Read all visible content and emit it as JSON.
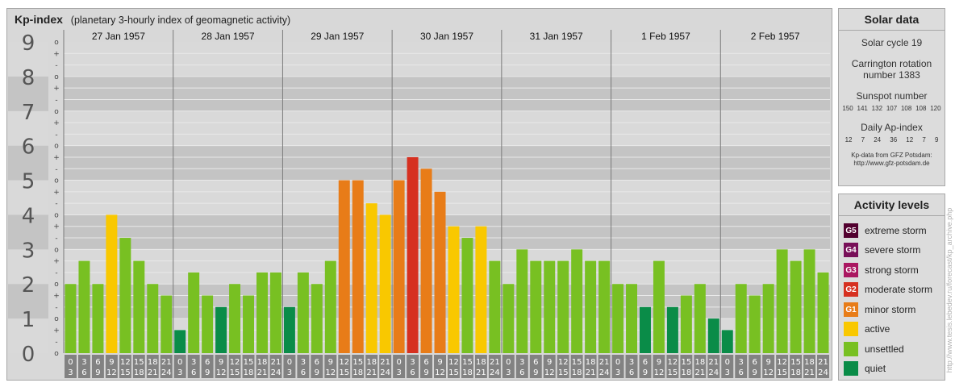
{
  "header": {
    "title": "Kp-index",
    "subtitle": "(planetary 3-hourly index of geomagnetic activity)"
  },
  "chart_data": {
    "type": "bar",
    "title": "Kp-index",
    "subtitle": "(planetary 3-hourly index of geomagnetic activity)",
    "ylim": [
      0,
      9
    ],
    "y_ticks": [
      "0",
      "1",
      "2",
      "3",
      "4",
      "5",
      "6",
      "7",
      "8",
      "9"
    ],
    "sub_ticks": [
      "o",
      "-",
      "+"
    ],
    "days": [
      "27 Jan 1957",
      "28 Jan 1957",
      "29 Jan 1957",
      "30 Jan 1957",
      "31 Jan 1957",
      "1 Feb 1957",
      "2 Feb 1957"
    ],
    "interval_start": [
      "0",
      "3",
      "6",
      "9",
      "12",
      "15",
      "18",
      "21"
    ],
    "interval_end": [
      "3",
      "6",
      "9",
      "12",
      "15",
      "18",
      "21",
      "24"
    ],
    "values": [
      2.0,
      2.667,
      2.0,
      4.0,
      3.333,
      2.667,
      2.0,
      1.667,
      0.667,
      2.333,
      1.667,
      1.333,
      2.0,
      1.667,
      2.333,
      2.333,
      1.333,
      2.333,
      2.0,
      2.667,
      5.0,
      5.0,
      4.333,
      4.0,
      5.0,
      5.667,
      5.333,
      4.667,
      3.667,
      3.333,
      3.667,
      2.667,
      2.0,
      3.0,
      2.667,
      2.667,
      2.667,
      3.0,
      2.667,
      2.667,
      2.0,
      2.0,
      1.333,
      2.667,
      1.333,
      1.667,
      2.0,
      1.0,
      0.667,
      2.0,
      1.667,
      2.0,
      3.0,
      2.667,
      3.0,
      2.333
    ],
    "grid": true
  },
  "solar": {
    "title": "Solar data",
    "cycle": "Solar cycle 19",
    "carrington_line1": "Carrington rotation",
    "carrington_line2": "number 1383",
    "sunspot_label": "Sunspot number",
    "sunspot_values": [
      "150",
      "141",
      "132",
      "107",
      "108",
      "108",
      "120"
    ],
    "ap_label": "Daily Ap-index",
    "ap_values": [
      "12",
      "7",
      "24",
      "36",
      "12",
      "7",
      "9"
    ],
    "credit_line1": "Kp-data from GFZ Potsdam:",
    "credit_line2": "http://www.gfz-potsdam.de"
  },
  "levels": {
    "title": "Activity levels",
    "items": [
      {
        "badge": "G5",
        "label": "extreme storm",
        "color": "#52002f"
      },
      {
        "badge": "G4",
        "label": "severe storm",
        "color": "#780f58"
      },
      {
        "badge": "G3",
        "label": "strong storm",
        "color": "#aa1660"
      },
      {
        "badge": "G2",
        "label": "moderate storm",
        "color": "#d63020"
      },
      {
        "badge": "G1",
        "label": "minor storm",
        "color": "#e87c18"
      },
      {
        "badge": "",
        "label": "active",
        "color": "#f9c800"
      },
      {
        "badge": "",
        "label": "unsettled",
        "color": "#78c022"
      },
      {
        "badge": "",
        "label": "quiet",
        "color": "#0a8c48"
      }
    ]
  },
  "watermark": "http://www.tesis.lebedev.ru/forecast/kp_archive.php",
  "colors": {
    "quiet": "#0a8c48",
    "unsettled": "#78c022",
    "active": "#f9c800",
    "minor_storm": "#e87c18",
    "moderate_storm": "#d63020",
    "panel": "#d8d8d8",
    "band_dark": "#c4c4c4",
    "band_light": "#d9d9d9",
    "axis_gray": "#828282"
  }
}
